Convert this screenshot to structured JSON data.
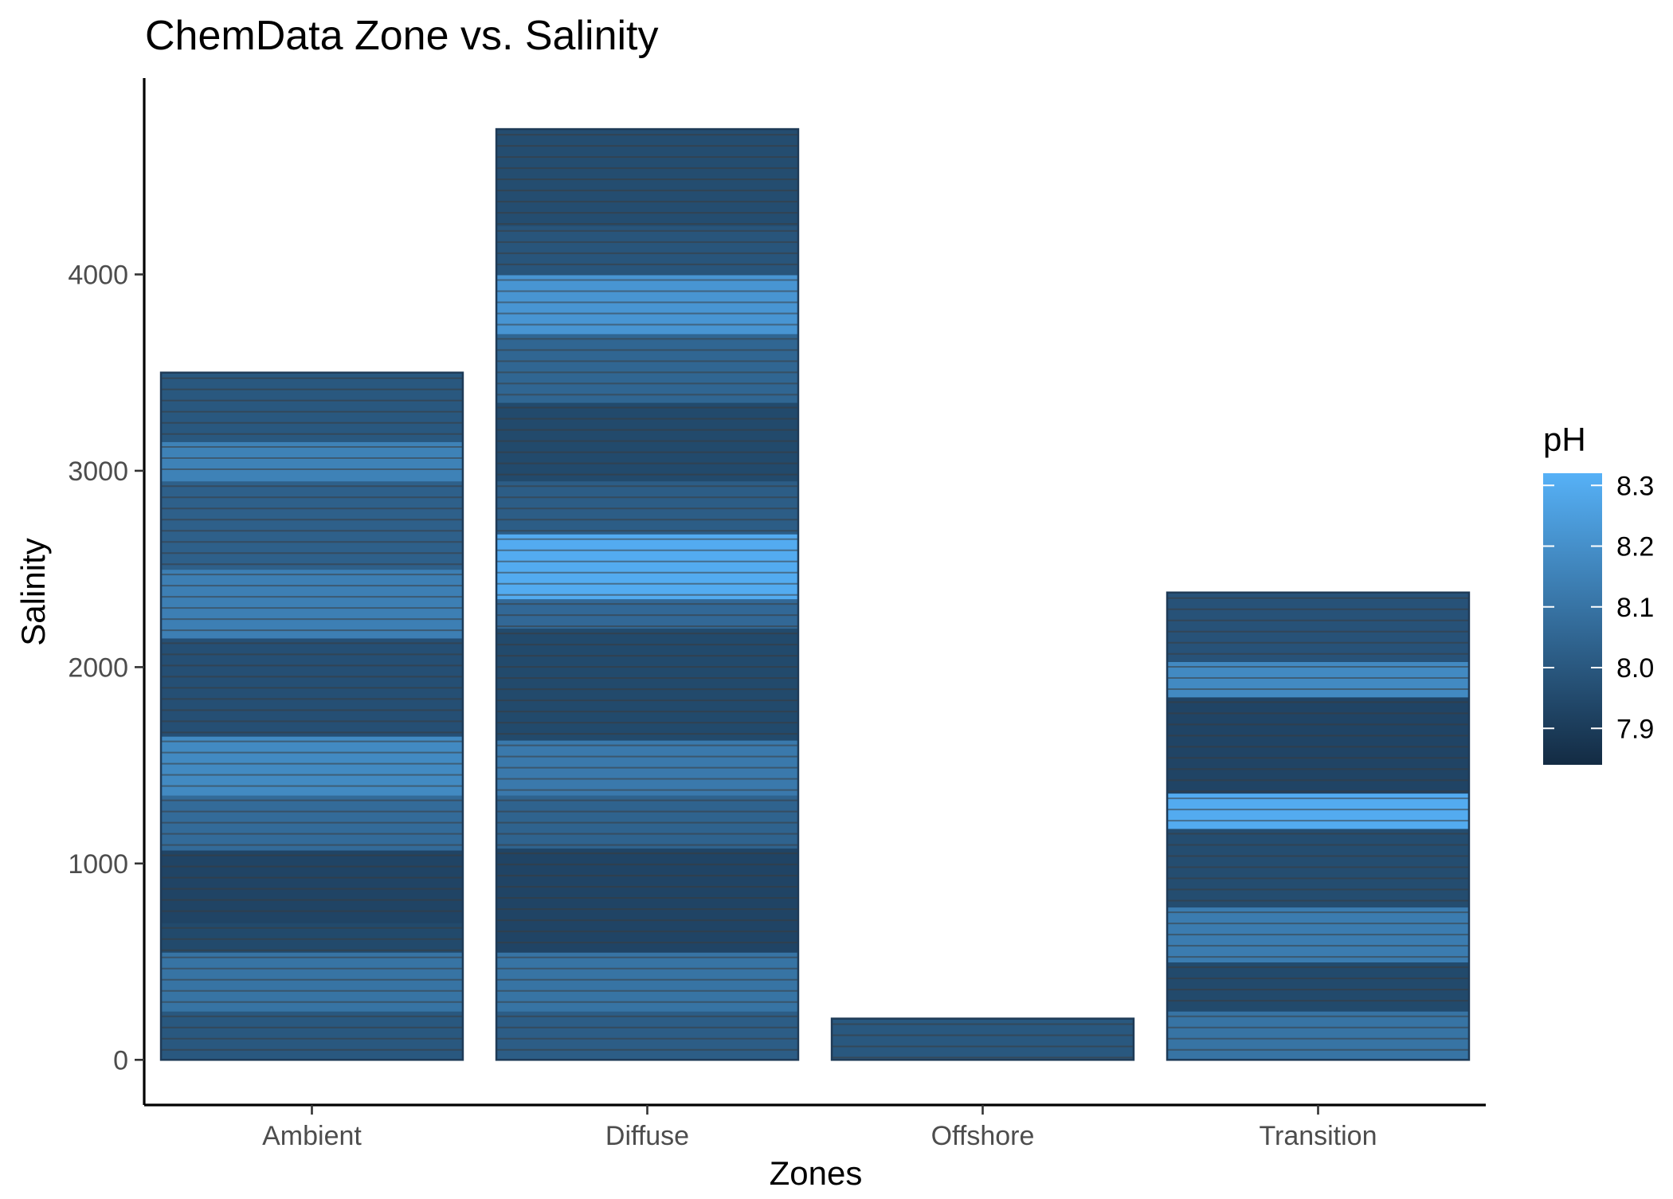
{
  "chart_data": {
    "type": "bar",
    "title": "ChemData Zone vs. Salinity",
    "xlabel": "Zones",
    "ylabel": "Salinity",
    "categories": [
      "Ambient",
      "Diffuse",
      "Offshore",
      "Transition"
    ],
    "values": [
      3500,
      4740,
      210,
      2380
    ],
    "ylim": [
      -230,
      5000
    ],
    "yticks": [
      0,
      1000,
      2000,
      3000,
      4000
    ],
    "legend": {
      "title": "pH",
      "position": "right",
      "range": [
        7.84,
        8.32
      ],
      "ticks": [
        7.9,
        8.0,
        8.1,
        8.2,
        8.3
      ],
      "low_color": "#132B43",
      "high_color": "#56B1F7"
    },
    "grid": false,
    "stacked_segments": {
      "Ambient": [
        {
          "from": 0,
          "to": 250,
          "ph": 8.0
        },
        {
          "from": 250,
          "to": 550,
          "ph": 8.1
        },
        {
          "from": 550,
          "to": 700,
          "ph": 7.95
        },
        {
          "from": 700,
          "to": 1070,
          "ph": 7.93
        },
        {
          "from": 1070,
          "to": 1350,
          "ph": 8.07
        },
        {
          "from": 1350,
          "to": 1650,
          "ph": 8.18
        },
        {
          "from": 1650,
          "to": 2150,
          "ph": 7.97
        },
        {
          "from": 2150,
          "to": 2500,
          "ph": 8.14
        },
        {
          "from": 2500,
          "to": 2950,
          "ph": 8.03
        },
        {
          "from": 2950,
          "to": 3150,
          "ph": 8.15
        },
        {
          "from": 3150,
          "to": 3500,
          "ph": 8.0
        }
      ],
      "Diffuse": [
        {
          "from": 0,
          "to": 250,
          "ph": 8.02
        },
        {
          "from": 250,
          "to": 550,
          "ph": 8.1
        },
        {
          "from": 550,
          "to": 1080,
          "ph": 7.93
        },
        {
          "from": 1080,
          "to": 1350,
          "ph": 8.04
        },
        {
          "from": 1350,
          "to": 1630,
          "ph": 8.12
        },
        {
          "from": 1630,
          "to": 2200,
          "ph": 7.95
        },
        {
          "from": 2200,
          "to": 2350,
          "ph": 8.06
        },
        {
          "from": 2350,
          "to": 2680,
          "ph": 8.3
        },
        {
          "from": 2680,
          "to": 2950,
          "ph": 8.02
        },
        {
          "from": 2950,
          "to": 3350,
          "ph": 7.95
        },
        {
          "from": 3350,
          "to": 3700,
          "ph": 8.05
        },
        {
          "from": 3700,
          "to": 4000,
          "ph": 8.22
        },
        {
          "from": 4000,
          "to": 4250,
          "ph": 7.99
        },
        {
          "from": 4250,
          "to": 4740,
          "ph": 7.96
        }
      ],
      "Offshore": [
        {
          "from": 0,
          "to": 210,
          "ph": 8.0
        }
      ],
      "Transition": [
        {
          "from": 0,
          "to": 250,
          "ph": 8.1
        },
        {
          "from": 250,
          "to": 500,
          "ph": 7.95
        },
        {
          "from": 500,
          "to": 780,
          "ph": 8.13
        },
        {
          "from": 780,
          "to": 1180,
          "ph": 7.96
        },
        {
          "from": 1180,
          "to": 1360,
          "ph": 8.3
        },
        {
          "from": 1360,
          "to": 1850,
          "ph": 7.93
        },
        {
          "from": 1850,
          "to": 2030,
          "ph": 8.18
        },
        {
          "from": 2030,
          "to": 2380,
          "ph": 7.98
        }
      ]
    }
  }
}
